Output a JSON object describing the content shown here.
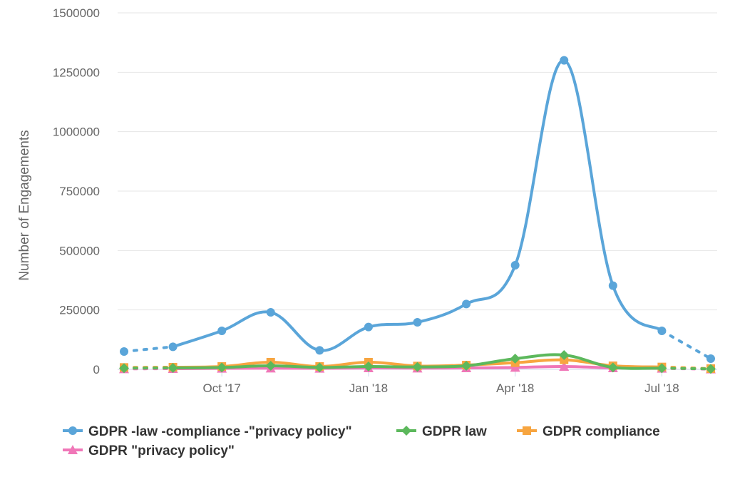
{
  "chart_data": {
    "type": "line",
    "title": "",
    "xlabel": "",
    "ylabel": "Number of Engagements",
    "ylim": [
      0,
      1500000
    ],
    "yticks": [
      0,
      250000,
      500000,
      750000,
      1000000,
      1250000,
      1500000
    ],
    "ytick_labels": [
      "0",
      "250000",
      "500000",
      "750000",
      "1000000",
      "1250000",
      "1500000"
    ],
    "x_positions": [
      0,
      1,
      2,
      3,
      4,
      5,
      6,
      7,
      8,
      9,
      10,
      11,
      12
    ],
    "xlim": [
      0,
      12
    ],
    "xtick_labels": [
      {
        "pos": 2,
        "label": "Oct '17"
      },
      {
        "pos": 5,
        "label": "Jan '18"
      },
      {
        "pos": 8,
        "label": "Apr '18"
      },
      {
        "pos": 11,
        "label": "Jul '18"
      }
    ],
    "grid": true,
    "legend_position": "bottom",
    "series": [
      {
        "name": "GDPR -law -compliance -\"privacy policy\"",
        "color": "#5aa5d9",
        "marker": "circle",
        "values": [
          75000,
          95000,
          162000,
          240000,
          80000,
          178000,
          198000,
          275000,
          438000,
          1300000,
          352000,
          162000,
          45000
        ]
      },
      {
        "name": "GDPR law",
        "color": "#5cb85c",
        "marker": "diamond",
        "values": [
          5000,
          6000,
          8000,
          15000,
          8000,
          12000,
          10000,
          15000,
          45000,
          60000,
          8000,
          5000,
          2000
        ]
      },
      {
        "name": "GDPR compliance",
        "color": "#f7a540",
        "marker": "square",
        "values": [
          8000,
          9000,
          12000,
          30000,
          12000,
          30000,
          14000,
          18000,
          28000,
          40000,
          15000,
          10000,
          3000
        ]
      },
      {
        "name": "GDPR \"privacy policy\"",
        "color": "#f077b8",
        "marker": "triangle",
        "values": [
          2000,
          3000,
          4000,
          5000,
          4000,
          6000,
          5000,
          6000,
          8000,
          12000,
          6000,
          4000,
          1000
        ]
      }
    ]
  }
}
